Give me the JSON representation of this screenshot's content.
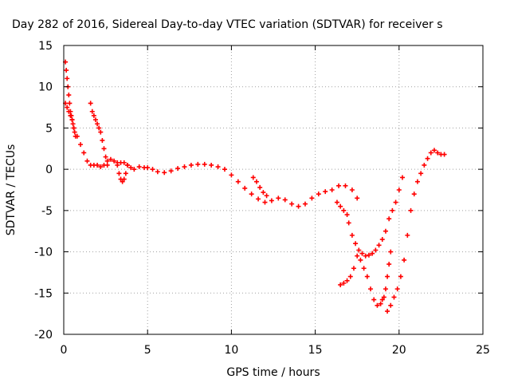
{
  "chart_data": {
    "type": "scatter",
    "title": "Day 282 of 2016, Sidereal Day-to-day VTEC variation (SDTVAR) for receiver s",
    "xlabel": "GPS time / hours",
    "ylabel": "SDTVAR / TECUs",
    "xlim": [
      0,
      25
    ],
    "ylim": [
      -20,
      15
    ],
    "xticks": [
      "0",
      "5",
      "10",
      "15",
      "20",
      "25"
    ],
    "yticks": [
      "15",
      "10",
      "5",
      "0",
      "-5",
      "-10",
      "-15",
      "-20"
    ],
    "grid": true,
    "marker": "+",
    "color": "#ff0000",
    "series": [
      {
        "x": [
          0.1,
          0.2,
          0.3,
          0.4,
          0.5,
          0.6,
          0.8,
          1.0,
          1.2,
          1.4,
          1.6,
          1.8,
          2.0,
          2.2,
          2.4,
          2.6,
          2.8,
          3.0,
          3.2,
          3.4,
          3.6,
          3.8,
          4.0,
          4.2,
          4.5,
          4.8,
          5.0,
          5.3,
          5.6,
          6.0,
          6.4,
          6.8,
          7.2,
          7.6,
          8.0,
          8.4,
          8.8,
          9.2,
          9.6,
          10.0,
          10.4,
          10.8,
          11.2,
          11.6,
          12.0,
          12.4,
          12.8,
          13.2,
          13.6,
          14.0,
          14.4,
          14.8,
          15.2,
          15.6,
          16.0,
          16.4,
          16.8,
          17.2,
          17.5
        ],
        "y": [
          8.0,
          7.5,
          7.0,
          6.5,
          6.0,
          5.0,
          4.0,
          3.0,
          2.0,
          1.0,
          0.5,
          0.5,
          0.5,
          0.3,
          0.5,
          1.0,
          1.2,
          1.0,
          0.8,
          0.8,
          0.8,
          0.5,
          0.2,
          0.0,
          0.3,
          0.2,
          0.2,
          0.0,
          -0.3,
          -0.4,
          -0.2,
          0.1,
          0.3,
          0.5,
          0.6,
          0.6,
          0.5,
          0.3,
          0.0,
          -0.7,
          -1.5,
          -2.3,
          -3.0,
          -3.6,
          -4.0,
          -3.8,
          -3.5,
          -3.7,
          -4.2,
          -4.5,
          -4.2,
          -3.5,
          -3.0,
          -2.7,
          -2.5,
          -2.0,
          -2.0,
          -2.5,
          -3.5
        ]
      },
      {
        "x": [
          0.1,
          0.15,
          0.2,
          0.25,
          0.3,
          0.35,
          0.4,
          0.45,
          0.5,
          0.55,
          0.6,
          0.65,
          0.7
        ],
        "y": [
          13.0,
          12.0,
          11.0,
          10.0,
          9.0,
          8.0,
          7.0,
          6.5,
          6.0,
          5.5,
          5.0,
          4.5,
          4.0
        ]
      },
      {
        "x": [
          1.6,
          1.7,
          1.8,
          1.9,
          2.0,
          2.1,
          2.2,
          2.3,
          2.4,
          2.5,
          2.6
        ],
        "y": [
          8.0,
          7.0,
          6.5,
          6.0,
          5.5,
          5.0,
          4.5,
          3.5,
          2.5,
          1.5,
          0.5
        ]
      },
      {
        "x": [
          3.2,
          3.3,
          3.4,
          3.5,
          3.6,
          3.7,
          3.8
        ],
        "y": [
          0.5,
          -0.5,
          -1.2,
          -1.5,
          -1.2,
          -0.5,
          0.5
        ]
      },
      {
        "x": [
          11.3,
          11.5,
          11.7,
          11.9,
          12.1
        ],
        "y": [
          -1.0,
          -1.5,
          -2.2,
          -2.8,
          -3.2
        ]
      },
      {
        "x": [
          16.3,
          16.5,
          16.7,
          16.9,
          17.0,
          17.2,
          17.4,
          17.6,
          17.8,
          18.0,
          18.2,
          18.4,
          18.6,
          18.8,
          19.0,
          19.2,
          19.4,
          19.6,
          19.8,
          20.0,
          20.2
        ],
        "y": [
          -4.0,
          -4.5,
          -5.0,
          -5.5,
          -6.5,
          -8.0,
          -9.0,
          -9.8,
          -10.2,
          -10.5,
          -10.4,
          -10.2,
          -9.8,
          -9.2,
          -8.5,
          -7.5,
          -6.0,
          -5.0,
          -4.0,
          -2.5,
          -1.0
        ]
      },
      {
        "x": [
          16.5,
          16.7,
          16.9,
          17.1,
          17.3,
          17.5,
          17.7,
          17.9,
          18.1,
          18.3,
          18.5,
          18.7,
          18.9,
          19.0,
          19.1,
          19.2,
          19.3,
          19.4,
          19.5
        ],
        "y": [
          -14.0,
          -13.8,
          -13.5,
          -13.0,
          -12.0,
          -10.5,
          -11.0,
          -12.0,
          -13.0,
          -14.5,
          -15.8,
          -16.5,
          -16.3,
          -15.8,
          -15.5,
          -14.5,
          -13.0,
          -11.5,
          -10.0
        ]
      },
      {
        "x": [
          19.3,
          19.5,
          19.7,
          19.9,
          20.1,
          20.3,
          20.5,
          20.7,
          20.9,
          21.1,
          21.3,
          21.5,
          21.7,
          21.9,
          22.1,
          22.3,
          22.5,
          22.7
        ],
        "y": [
          -17.2,
          -16.5,
          -15.5,
          -14.5,
          -13.0,
          -11.0,
          -8.0,
          -5.0,
          -3.0,
          -1.5,
          -0.5,
          0.5,
          1.3,
          2.0,
          2.3,
          2.0,
          1.8,
          1.8
        ]
      }
    ]
  }
}
